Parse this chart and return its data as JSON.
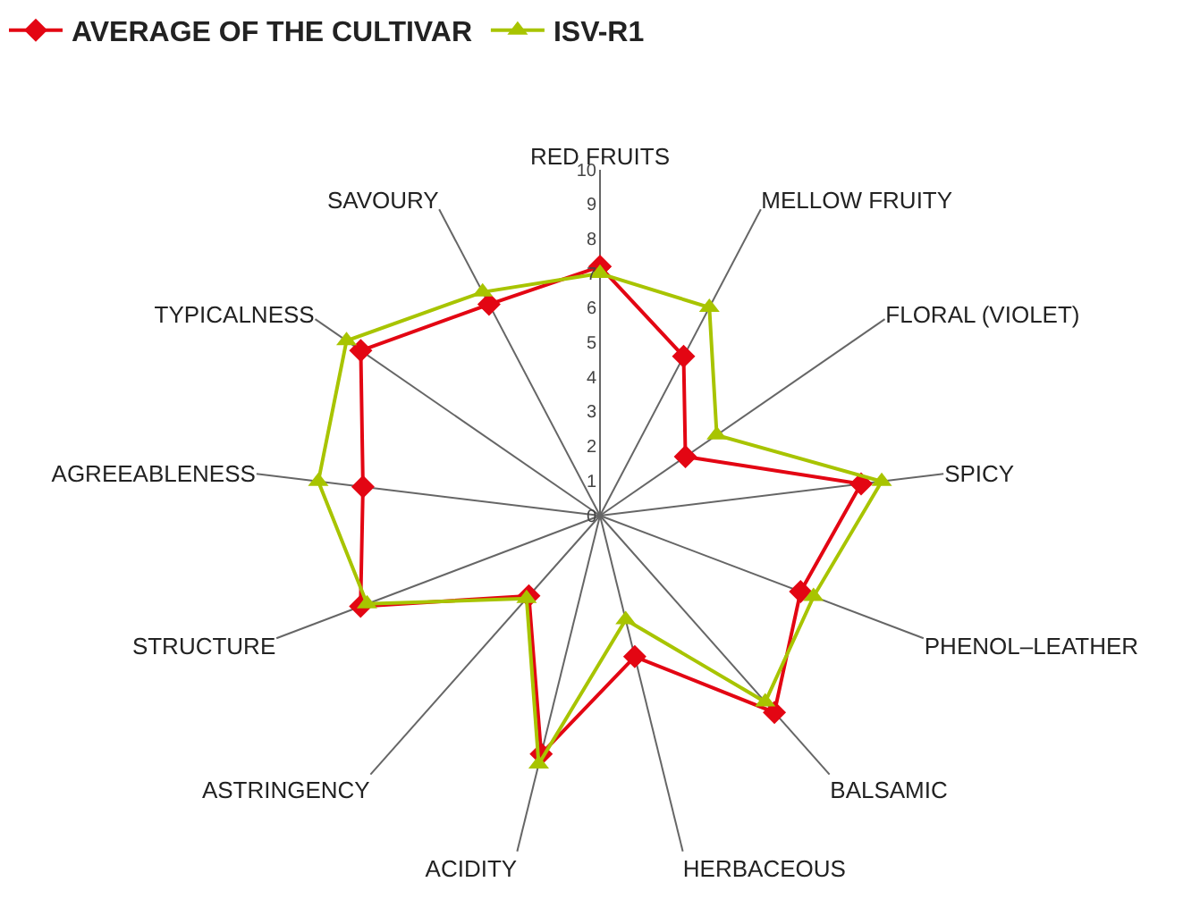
{
  "chart_data": {
    "type": "radar",
    "categories": [
      "RED FRUITS",
      "MELLOW FRUITY",
      "FLORAL (VIOLET)",
      "SPICY",
      "PHENOL–LEATHER",
      "BALSAMIC",
      "HERBACEOUS",
      "ACIDITY",
      "ASTRINGENCY",
      "STRUCTURE",
      "AGREEABLENESS",
      "TYPICALNESS",
      "SAVOURY"
    ],
    "series": [
      {
        "name": "AVERAGE OF THE CULTIVAR",
        "color": "#e30613",
        "marker": "diamond",
        "values": [
          7.2,
          5.2,
          3.0,
          7.6,
          6.2,
          7.6,
          4.2,
          7.1,
          3.1,
          7.4,
          6.9,
          8.4,
          6.9
        ]
      },
      {
        "name": "ISV-R1",
        "color": "#a8c400",
        "marker": "triangle",
        "values": [
          7.0,
          6.8,
          4.1,
          8.2,
          6.6,
          7.2,
          3.1,
          7.4,
          3.2,
          7.2,
          8.2,
          8.9,
          7.3
        ]
      }
    ],
    "ylim": [
      0,
      10
    ],
    "yticks": [
      0,
      1,
      2,
      3,
      4,
      5,
      6,
      7,
      8,
      9,
      10
    ],
    "grid": true,
    "legend": "top left",
    "line_style": "solid"
  }
}
